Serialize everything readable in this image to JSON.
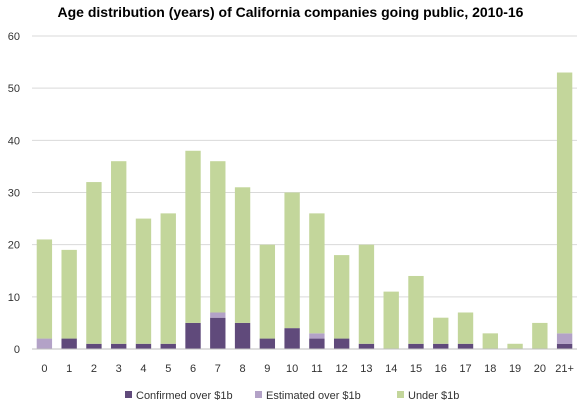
{
  "chart_data": {
    "type": "bar",
    "stacked": true,
    "title": "Age distribution (years) of California companies going public, 2010-16",
    "xlabel": "",
    "ylabel": "",
    "ylim": [
      0,
      60
    ],
    "yticks": [
      0,
      10,
      20,
      30,
      40,
      50,
      60
    ],
    "grid": "horizontal",
    "legend_position": "bottom",
    "categories": [
      "0",
      "1",
      "2",
      "3",
      "4",
      "5",
      "6",
      "7",
      "8",
      "9",
      "10",
      "11",
      "12",
      "13",
      "14",
      "15",
      "16",
      "17",
      "18",
      "19",
      "20",
      "21+"
    ],
    "series": [
      {
        "name": "Confirmed over $1b",
        "color": "#604a7b",
        "values": [
          0,
          2,
          1,
          1,
          1,
          1,
          5,
          6,
          5,
          2,
          4,
          2,
          2,
          1,
          0,
          1,
          1,
          1,
          0,
          0,
          0,
          1
        ]
      },
      {
        "name": "Estimated over $1b",
        "color": "#b3a2c7",
        "values": [
          2,
          0,
          0,
          0,
          0,
          0,
          0,
          1,
          0,
          0,
          0,
          1,
          0,
          0,
          0,
          0,
          0,
          0,
          0,
          0,
          0,
          2
        ]
      },
      {
        "name": "Under $1b",
        "color": "#c3d69b",
        "values": [
          19,
          17,
          31,
          35,
          24,
          25,
          33,
          29,
          26,
          18,
          26,
          23,
          16,
          19,
          11,
          13,
          5,
          6,
          3,
          1,
          5,
          50
        ]
      }
    ]
  }
}
